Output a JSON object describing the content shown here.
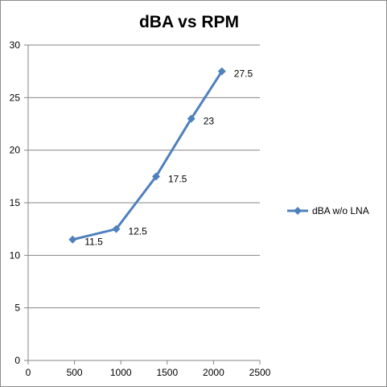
{
  "chart_data": {
    "type": "line",
    "title": "dBA vs RPM",
    "xlabel": "",
    "ylabel": "",
    "xlim": [
      0,
      2500
    ],
    "ylim": [
      0,
      30
    ],
    "x_ticks": [
      "0",
      "500",
      "1000",
      "1500",
      "2000",
      "2500"
    ],
    "y_ticks": [
      "0",
      "5",
      "10",
      "15",
      "20",
      "25",
      "30"
    ],
    "grid": "horizontal",
    "legend_position": "right",
    "series": [
      {
        "name": "dBA w/o LNA",
        "color": "#4f81bd",
        "marker": "diamond",
        "x": [
          480,
          950,
          1380,
          1760,
          2090
        ],
        "y": [
          11.5,
          12.5,
          17.5,
          23,
          27.5
        ],
        "labels": [
          "11.5",
          "12.5",
          "17.5",
          "23",
          "27.5"
        ]
      }
    ]
  }
}
